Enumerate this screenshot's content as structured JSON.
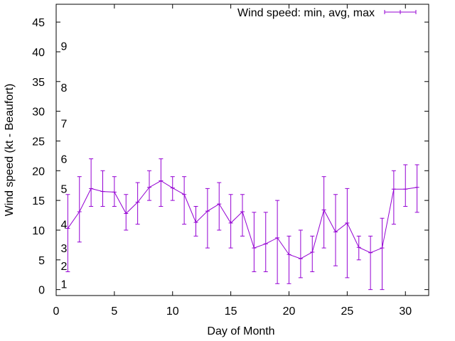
{
  "chart_data": {
    "type": "line",
    "title": "",
    "xlabel": "Day of Month",
    "ylabel": "Wind speed (kt - Beaufort)",
    "xlim": [
      0,
      32
    ],
    "ylim": [
      -1,
      48
    ],
    "x_ticks": [
      0,
      5,
      10,
      15,
      20,
      25,
      30
    ],
    "y_ticks": [
      0,
      5,
      10,
      15,
      20,
      25,
      30,
      35,
      40,
      45
    ],
    "grid": false,
    "legend_position": "top-right",
    "series_color": "#9400d3",
    "beaufort_labels": [
      {
        "label": "1",
        "y": 1
      },
      {
        "label": "2",
        "y": 4
      },
      {
        "label": "3",
        "y": 7
      },
      {
        "label": "4",
        "y": 11
      },
      {
        "label": "5",
        "y": 17
      },
      {
        "label": "6",
        "y": 22
      },
      {
        "label": "7",
        "y": 28
      },
      {
        "label": "8",
        "y": 34
      },
      {
        "label": "9",
        "y": 41
      }
    ],
    "series": [
      {
        "name": "Wind speed: min, avg, max",
        "x": [
          1,
          2,
          3,
          4,
          5,
          6,
          7,
          8,
          9,
          10,
          11,
          12,
          13,
          14,
          15,
          16,
          17,
          18,
          19,
          20,
          21,
          22,
          23,
          24,
          25,
          26,
          27,
          28,
          29,
          30,
          31
        ],
        "avg": [
          10.3,
          13.1,
          17.0,
          16.5,
          16.4,
          12.8,
          14.7,
          17.2,
          18.3,
          17.1,
          16.0,
          11.3,
          13.2,
          14.4,
          11.2,
          13.1,
          7.0,
          7.7,
          8.7,
          5.9,
          5.2,
          6.3,
          13.4,
          9.7,
          11.2,
          7.1,
          6.2,
          7.0,
          16.9,
          16.9,
          17.2
        ],
        "min": [
          3,
          8,
          14,
          14,
          14,
          10,
          11,
          15,
          14,
          15,
          11,
          9,
          7,
          10,
          7,
          9,
          3,
          3,
          1,
          1,
          2,
          3,
          7,
          4,
          2,
          5,
          0,
          0,
          11,
          14,
          13
        ],
        "max": [
          16,
          19,
          22,
          20,
          19,
          16,
          18,
          20,
          22,
          19,
          19,
          14,
          17,
          18,
          16,
          16,
          13,
          13,
          15,
          9,
          10,
          9,
          19,
          16,
          17,
          9,
          9,
          12,
          20,
          21,
          21
        ]
      }
    ]
  }
}
